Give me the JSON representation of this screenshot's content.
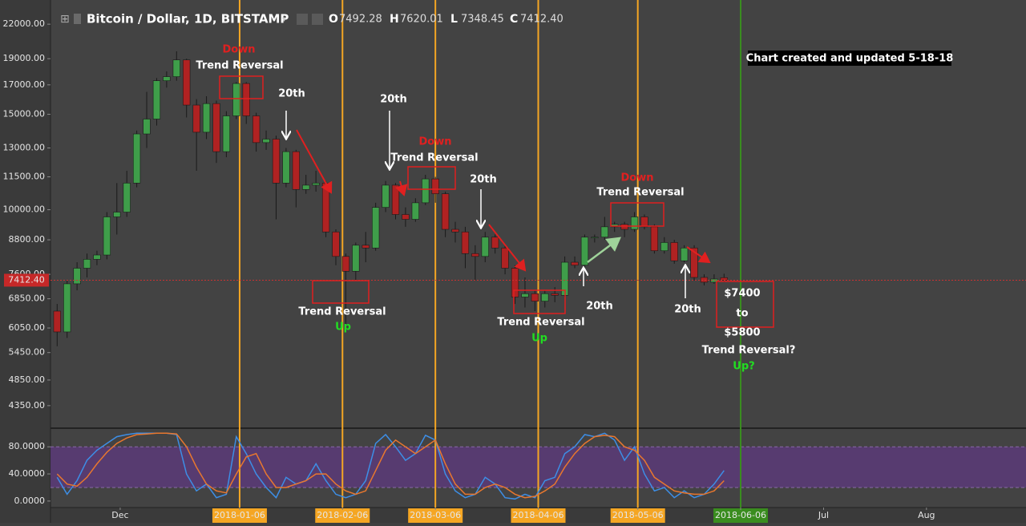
{
  "chart_data": {
    "type": "candlestick",
    "title": "Bitcoin / Dollar, 1D, BITSTAMP",
    "ohlc_labels": [
      "O",
      "H",
      "L",
      "C"
    ],
    "note": "Chart created and updated 5-18-18",
    "log_scale": true,
    "up_color": "#3f9e4a",
    "down_color": "#b02222",
    "x": [
      "2017-11-12",
      "2017-11-15",
      "2017-11-18",
      "2017-11-21",
      "2017-11-24",
      "2017-11-27",
      "2017-11-30",
      "2017-12-03",
      "2017-12-06",
      "2017-12-09",
      "2017-12-12",
      "2017-12-15",
      "2017-12-18",
      "2017-12-21",
      "2017-12-24",
      "2017-12-27",
      "2017-12-30",
      "2018-01-02",
      "2018-01-05",
      "2018-01-08",
      "2018-01-11",
      "2018-01-14",
      "2018-01-17",
      "2018-01-20",
      "2018-01-23",
      "2018-01-26",
      "2018-01-29",
      "2018-02-01",
      "2018-02-04",
      "2018-02-07",
      "2018-02-10",
      "2018-02-13",
      "2018-02-16",
      "2018-02-19",
      "2018-02-22",
      "2018-02-25",
      "2018-02-28",
      "2018-03-03",
      "2018-03-06",
      "2018-03-09",
      "2018-03-12",
      "2018-03-15",
      "2018-03-18",
      "2018-03-21",
      "2018-03-24",
      "2018-03-27",
      "2018-03-30",
      "2018-04-02",
      "2018-04-05",
      "2018-04-08",
      "2018-04-11",
      "2018-04-14",
      "2018-04-17",
      "2018-04-20",
      "2018-04-23",
      "2018-04-26",
      "2018-04-29",
      "2018-05-02",
      "2018-05-05",
      "2018-05-08",
      "2018-05-11",
      "2018-05-14",
      "2018-05-17",
      "2018-05-20",
      "2018-05-23",
      "2018-05-26",
      "2018-05-29",
      "2018-06-01"
    ],
    "open": [
      6500,
      5950,
      7300,
      7800,
      8100,
      8250,
      9700,
      9900,
      11200,
      13800,
      14700,
      17300,
      17600,
      18900,
      15600,
      13900,
      15700,
      12800,
      14900,
      17100,
      14900,
      13300,
      13500,
      11200,
      12800,
      10900,
      11100,
      11200,
      9100,
      8200,
      7700,
      8600,
      8500,
      10100,
      11100,
      9800,
      9600,
      10300,
      11400,
      10700,
      9200,
      9100,
      8300,
      8200,
      8900,
      8500,
      7800,
      6900,
      7000,
      6780,
      7000,
      6950,
      8000,
      7900,
      8900,
      8900,
      9300,
      9400,
      9200,
      9700,
      9300,
      8400,
      8700,
      8050,
      8500,
      7500,
      7350,
      7492.28
    ],
    "high": [
      6700,
      7400,
      8000,
      8300,
      8400,
      9900,
      11200,
      11800,
      14000,
      16500,
      17500,
      18000,
      19600,
      19000,
      16000,
      16200,
      15900,
      15200,
      17200,
      17200,
      15100,
      14000,
      13700,
      13000,
      12900,
      11600,
      11800,
      11300,
      9200,
      8300,
      8700,
      9100,
      10300,
      11300,
      11200,
      10100,
      10500,
      11600,
      11500,
      10800,
      9500,
      9300,
      8600,
      9100,
      9000,
      8600,
      7900,
      7500,
      7100,
      7100,
      7200,
      8200,
      8200,
      9000,
      9000,
      9700,
      9500,
      9500,
      9900,
      9800,
      9400,
      8900,
      8800,
      8600,
      8600,
      7600,
      7600,
      7620.01
    ],
    "low": [
      5600,
      5800,
      7100,
      7500,
      7900,
      8100,
      9000,
      9700,
      11000,
      13000,
      14300,
      16800,
      17300,
      14800,
      11800,
      13500,
      12200,
      12500,
      14700,
      14400,
      12800,
      12900,
      9600,
      11000,
      10100,
      10700,
      10800,
      8900,
      7900,
      6000,
      7400,
      8000,
      8400,
      9900,
      9600,
      9300,
      9500,
      10200,
      10300,
      8900,
      8700,
      7800,
      7400,
      8000,
      8300,
      7600,
      6700,
      6600,
      6500,
      6600,
      6750,
      6900,
      7800,
      7800,
      8700,
      8800,
      9100,
      8900,
      9100,
      9200,
      8300,
      8300,
      7950,
      8000,
      7400,
      7250,
      7300,
      7348.45
    ],
    "close": [
      5950,
      7300,
      7800,
      8100,
      8250,
      9700,
      9900,
      11200,
      13800,
      14700,
      17300,
      17600,
      18900,
      15600,
      13900,
      15700,
      12800,
      14900,
      17100,
      14900,
      13300,
      13500,
      11200,
      12800,
      10900,
      11100,
      11200,
      9100,
      8200,
      7700,
      8600,
      8500,
      10100,
      11100,
      9800,
      9600,
      10300,
      11400,
      10700,
      9200,
      9100,
      8300,
      8200,
      8900,
      8500,
      7800,
      6900,
      7000,
      6780,
      7000,
      6950,
      8000,
      7900,
      8900,
      8900,
      9300,
      9400,
      9200,
      9700,
      9300,
      8400,
      8700,
      8050,
      8500,
      7500,
      7350,
      7450,
      7412.4
    ],
    "close_labels": {
      "67": "7412.40"
    },
    "ylim": [
      3966,
      24380
    ],
    "yticks": [
      {
        "value": 22000,
        "label": "22000.00"
      },
      {
        "value": 19000,
        "label": "19000.00"
      },
      {
        "value": 17000,
        "label": "17000.00"
      },
      {
        "value": 15000,
        "label": "15000.00"
      },
      {
        "value": 13000,
        "label": "13000.00"
      },
      {
        "value": 11500,
        "label": "11500.00"
      },
      {
        "value": 10000,
        "label": "10000.00"
      },
      {
        "value": 8800,
        "label": "8800.00"
      },
      {
        "value": 7600,
        "label": "7600.00"
      },
      {
        "value": 6850,
        "label": "6850.00"
      },
      {
        "value": 6050,
        "label": "6050.00"
      },
      {
        "value": 5450,
        "label": "5450.00"
      },
      {
        "value": 4850,
        "label": "4850.00"
      },
      {
        "value": 4350,
        "label": "4350.00"
      }
    ],
    "xlim": [
      "2017-11-10",
      "2018-08-31"
    ],
    "xticks": [
      {
        "value": "2017-12-01",
        "label": "Dec"
      },
      "2018-01-06",
      "2018-02-06",
      "2018-03-06",
      "2018-04-06",
      "2018-05-06",
      "2018-06-06",
      {
        "value": "2018-07-01",
        "label": "Jul"
      },
      {
        "value": "2018-08-01",
        "label": "Aug"
      }
    ],
    "vlines": [
      {
        "x": "2018-01-06",
        "color": "#f5a623"
      },
      {
        "x": "2018-02-06",
        "color": "#f5a623"
      },
      {
        "x": "2018-03-06",
        "color": "#f5a623"
      },
      {
        "x": "2018-04-06",
        "color": "#f5a623"
      },
      {
        "x": "2018-05-06",
        "color": "#f5a623"
      },
      {
        "x": "2018-06-06",
        "color": "#3a8d1f"
      }
    ],
    "annotations": [
      {
        "text": "Down",
        "color": "#e02020"
      },
      {
        "text": "Trend Reversal",
        "color": "#ffffff"
      },
      {
        "text": "20th",
        "color": "#ffffff"
      },
      {
        "text": "20th",
        "color": "#ffffff"
      },
      {
        "text": "Down",
        "color": "#e02020"
      },
      {
        "text": "Trend Reversal",
        "color": "#ffffff"
      },
      {
        "text": "20th",
        "color": "#ffffff"
      },
      {
        "text": "Down",
        "color": "#e02020"
      },
      {
        "text": "Trend Reversal",
        "color": "#ffffff"
      },
      {
        "text": "Trend Reversal",
        "color": "#ffffff"
      },
      {
        "text": "Up",
        "color": "#22dd22"
      },
      {
        "text": "Trend Reversal",
        "color": "#ffffff"
      },
      {
        "text": "Up",
        "color": "#22dd22"
      },
      {
        "text": "20th",
        "color": "#ffffff"
      },
      {
        "text": "20th",
        "color": "#ffffff"
      },
      {
        "text": "$7400",
        "color": "#ffffff"
      },
      {
        "text": "to",
        "color": "#ffffff"
      },
      {
        "text": "$5800",
        "color": "#ffffff"
      },
      {
        "text": "Trend Reversal?",
        "color": "#ffffff"
      },
      {
        "text": "Up?",
        "color": "#22dd22"
      }
    ],
    "indicator": {
      "type": "line",
      "ylim": [
        -9.6,
        106.3
      ],
      "yticks": [
        {
          "value": 80,
          "label": "80.0000"
        },
        {
          "value": 40,
          "label": "40.0000"
        },
        {
          "value": 0,
          "label": "0.0000"
        }
      ],
      "band": [
        20,
        80
      ],
      "band_color": "#5a3a78",
      "series": [
        {
          "color": "#3d8ee6",
          "values": [
            35,
            10,
            30,
            60,
            75,
            85,
            95,
            98,
            100,
            100,
            100,
            100,
            98,
            40,
            15,
            25,
            5,
            10,
            95,
            70,
            40,
            20,
            5,
            35,
            25,
            30,
            55,
            30,
            10,
            5,
            10,
            30,
            85,
            98,
            80,
            60,
            70,
            97,
            90,
            40,
            15,
            5,
            10,
            35,
            25,
            5,
            3,
            10,
            5,
            30,
            35,
            70,
            80,
            98,
            95,
            100,
            90,
            60,
            80,
            40,
            15,
            20,
            5,
            15,
            5,
            10,
            25,
            45
          ]
        },
        {
          "color": "#e8772e",
          "values": [
            40,
            25,
            22,
            35,
            55,
            72,
            85,
            93,
            98,
            99,
            100,
            100,
            99,
            80,
            50,
            25,
            15,
            12,
            40,
            65,
            70,
            40,
            20,
            20,
            25,
            30,
            40,
            40,
            25,
            15,
            10,
            15,
            45,
            75,
            90,
            80,
            70,
            80,
            90,
            55,
            25,
            10,
            10,
            20,
            25,
            20,
            10,
            5,
            7,
            15,
            25,
            50,
            70,
            85,
            95,
            97,
            95,
            80,
            75,
            60,
            35,
            25,
            15,
            12,
            10,
            10,
            15,
            30
          ]
        }
      ]
    }
  }
}
